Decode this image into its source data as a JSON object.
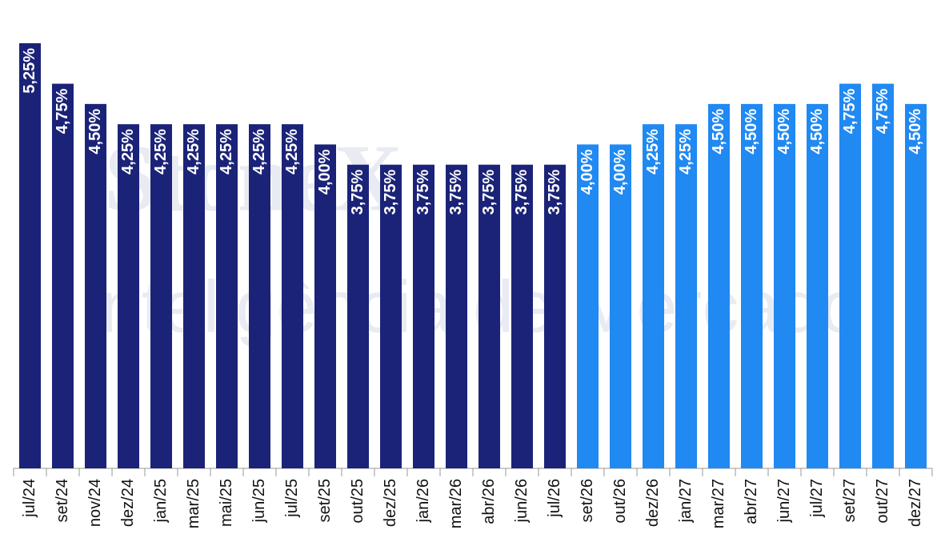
{
  "chart_data": {
    "type": "bar",
    "watermark": [
      "StoneX",
      "Inteligência de Mercado"
    ],
    "categories": [
      "jul/24",
      "set/24",
      "nov/24",
      "dez/24",
      "jan/25",
      "mar/25",
      "mai/25",
      "jun/25",
      "jul/25",
      "set/25",
      "out/25",
      "dez/25",
      "jan/26",
      "mar/26",
      "abr/26",
      "jun/26",
      "jul/26",
      "set/26",
      "out/26",
      "dez/26",
      "jan/27",
      "mar/27",
      "abr/27",
      "jun/27",
      "jul/27",
      "set/27",
      "out/27",
      "dez/27"
    ],
    "values": [
      5.25,
      4.75,
      4.5,
      4.25,
      4.25,
      4.25,
      4.25,
      4.25,
      4.25,
      4.0,
      3.75,
      3.75,
      3.75,
      3.75,
      3.75,
      3.75,
      3.75,
      4.0,
      4.0,
      4.25,
      4.25,
      4.5,
      4.5,
      4.5,
      4.5,
      4.75,
      4.75,
      4.5
    ],
    "value_labels": [
      "5,25%",
      "4,75%",
      "4,50%",
      "4,25%",
      "4,25%",
      "4,25%",
      "4,25%",
      "4,25%",
      "4,25%",
      "4,00%",
      "3,75%",
      "3,75%",
      "3,75%",
      "3,75%",
      "3,75%",
      "3,75%",
      "3,75%",
      "4,00%",
      "4,00%",
      "4,25%",
      "4,25%",
      "4,50%",
      "4,50%",
      "4,50%",
      "4,50%",
      "4,75%",
      "4,75%",
      "4,50%"
    ],
    "colors": [
      "#1b2378",
      "#1b2378",
      "#1b2378",
      "#1b2378",
      "#1b2378",
      "#1b2378",
      "#1b2378",
      "#1b2378",
      "#1b2378",
      "#1b2378",
      "#1b2378",
      "#1b2378",
      "#1b2378",
      "#1b2378",
      "#1b2378",
      "#1b2378",
      "#1b2378",
      "#2089f2",
      "#2089f2",
      "#2089f2",
      "#2089f2",
      "#2089f2",
      "#2089f2",
      "#2089f2",
      "#2089f2",
      "#2089f2",
      "#2089f2",
      "#2089f2"
    ]
  }
}
